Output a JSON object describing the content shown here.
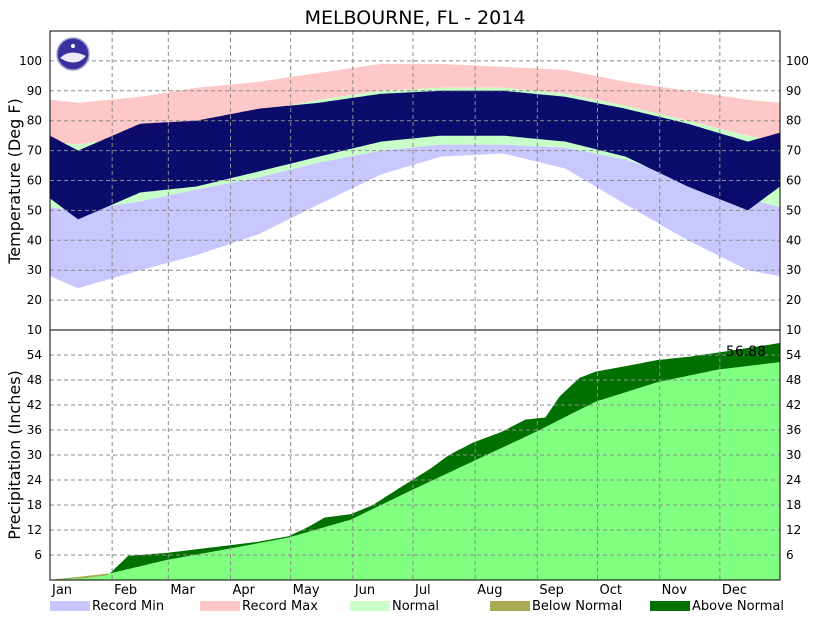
{
  "chart_data": {
    "type": "area",
    "title": "MELBOURNE, FL - 2014",
    "months": [
      "Jan",
      "Feb",
      "Mar",
      "Apr",
      "May",
      "Jun",
      "Jul",
      "Aug",
      "Sep",
      "Oct",
      "Nov",
      "Dec"
    ],
    "legend_position": "bottom",
    "legend": [
      {
        "label": "Record Min",
        "color": "#c8c8ff"
      },
      {
        "label": "Record Max",
        "color": "#ffc8c8"
      },
      {
        "label": "Normal",
        "color": "#c8ffc8"
      },
      {
        "label": "Below Normal",
        "color": "#aaaa55"
      },
      {
        "label": "Above Normal",
        "color": "#007000"
      }
    ],
    "temperature": {
      "ylabel": "Temperature (Deg F)",
      "ylim": [
        10,
        110
      ],
      "yticks": [
        100,
        90,
        80,
        70,
        60,
        50,
        40,
        30,
        20,
        10
      ],
      "observed_color": "#000066",
      "normal_high_points": [
        [
          1,
          73
        ],
        [
          15,
          72
        ],
        [
          46,
          75
        ],
        [
          74,
          79
        ],
        [
          105,
          83
        ],
        [
          135,
          87
        ],
        [
          166,
          90
        ],
        [
          196,
          91
        ],
        [
          227,
          91
        ],
        [
          258,
          89
        ],
        [
          288,
          85
        ],
        [
          319,
          80
        ],
        [
          349,
          75
        ],
        [
          365,
          73
        ]
      ],
      "normal_low_points": [
        [
          1,
          51
        ],
        [
          15,
          50
        ],
        [
          46,
          53
        ],
        [
          74,
          57
        ],
        [
          105,
          61
        ],
        [
          135,
          66
        ],
        [
          166,
          70
        ],
        [
          196,
          72
        ],
        [
          227,
          72
        ],
        [
          258,
          71
        ],
        [
          288,
          67
        ],
        [
          319,
          60
        ],
        [
          349,
          54
        ],
        [
          365,
          51
        ]
      ],
      "record_max_points": [
        [
          1,
          87
        ],
        [
          15,
          86
        ],
        [
          46,
          88
        ],
        [
          74,
          91
        ],
        [
          105,
          93
        ],
        [
          135,
          96
        ],
        [
          166,
          99
        ],
        [
          196,
          99
        ],
        [
          227,
          98
        ],
        [
          258,
          97
        ],
        [
          288,
          93
        ],
        [
          319,
          90
        ],
        [
          349,
          87
        ],
        [
          365,
          86
        ]
      ],
      "record_min_points": [
        [
          1,
          28
        ],
        [
          15,
          24
        ],
        [
          46,
          30
        ],
        [
          74,
          35
        ],
        [
          105,
          42
        ],
        [
          135,
          52
        ],
        [
          166,
          62
        ],
        [
          196,
          68
        ],
        [
          227,
          69
        ],
        [
          258,
          64
        ],
        [
          288,
          52
        ],
        [
          319,
          40
        ],
        [
          349,
          30
        ],
        [
          365,
          28
        ]
      ],
      "obs_high_points": [
        [
          1,
          75
        ],
        [
          15,
          70
        ],
        [
          46,
          79
        ],
        [
          74,
          80
        ],
        [
          105,
          84
        ],
        [
          135,
          86
        ],
        [
          166,
          89
        ],
        [
          196,
          90
        ],
        [
          227,
          90
        ],
        [
          258,
          88
        ],
        [
          288,
          84
        ],
        [
          319,
          79
        ],
        [
          349,
          73
        ],
        [
          365,
          76
        ]
      ],
      "obs_low_points": [
        [
          1,
          54
        ],
        [
          15,
          47
        ],
        [
          46,
          56
        ],
        [
          74,
          58
        ],
        [
          105,
          63
        ],
        [
          135,
          68
        ],
        [
          166,
          73
        ],
        [
          196,
          75
        ],
        [
          227,
          75
        ],
        [
          258,
          73
        ],
        [
          288,
          68
        ],
        [
          319,
          58
        ],
        [
          349,
          50
        ],
        [
          365,
          58
        ]
      ]
    },
    "precipitation": {
      "ylabel": "Precipitation (Inches)",
      "ylim": [
        0,
        60
      ],
      "yticks": [
        54,
        48,
        42,
        36,
        30,
        24,
        18,
        12,
        6
      ],
      "total_label": "56.88",
      "normal_points": [
        [
          1,
          0
        ],
        [
          31,
          1.6
        ],
        [
          59,
          4.8
        ],
        [
          90,
          7.5
        ],
        [
          120,
          10.2
        ],
        [
          151,
          14.5
        ],
        [
          181,
          21.5
        ],
        [
          212,
          28.5
        ],
        [
          243,
          35.5
        ],
        [
          273,
          42.8
        ],
        [
          304,
          47.5
        ],
        [
          334,
          50.5
        ],
        [
          365,
          52.3
        ]
      ],
      "observed_points": [
        [
          1,
          0
        ],
        [
          20,
          0.5
        ],
        [
          30,
          1.2
        ],
        [
          40,
          5.8
        ],
        [
          59,
          6.5
        ],
        [
          90,
          8.3
        ],
        [
          105,
          9.2
        ],
        [
          120,
          10.5
        ],
        [
          130,
          12.8
        ],
        [
          138,
          15.0
        ],
        [
          151,
          15.8
        ],
        [
          162,
          18.0
        ],
        [
          175,
          22.0
        ],
        [
          190,
          26.5
        ],
        [
          200,
          30.0
        ],
        [
          212,
          33.0
        ],
        [
          226,
          35.5
        ],
        [
          238,
          38.5
        ],
        [
          248,
          39.0
        ],
        [
          255,
          44.0
        ],
        [
          265,
          48.5
        ],
        [
          273,
          50.0
        ],
        [
          290,
          51.5
        ],
        [
          304,
          52.8
        ],
        [
          320,
          53.6
        ],
        [
          340,
          55.0
        ],
        [
          365,
          56.88
        ]
      ]
    }
  }
}
